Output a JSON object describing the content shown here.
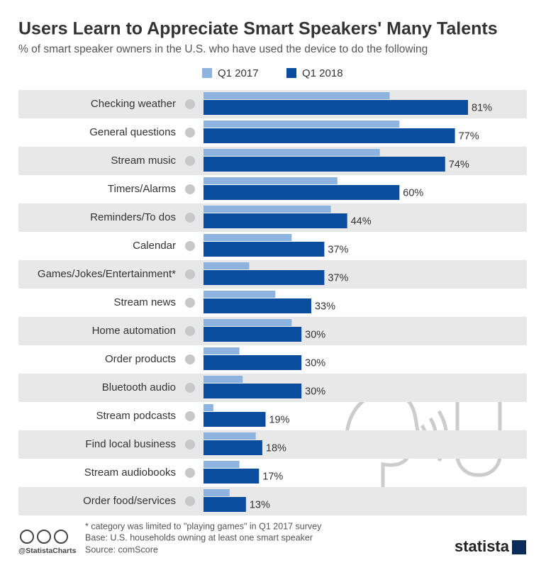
{
  "chart_data": {
    "type": "hbar",
    "title": "Users Learn to Appreciate Smart Speakers' Many Talents",
    "subtitle": "% of smart speaker owners in the U.S. who have used the device to do the following",
    "categories": [
      "Checking weather",
      "General questions",
      "Stream music",
      "Timers/Alarms",
      "Reminders/To dos",
      "Calendar",
      "Games/Jokes/Entertainment*",
      "Stream news",
      "Home automation",
      "Order products",
      "Bluetooth audio",
      "Stream podcasts",
      "Find local business",
      "Stream audiobooks",
      "Order food/services"
    ],
    "series": [
      {
        "name": "Q1 2017",
        "color": "#8db4df",
        "values": [
          57,
          60,
          54,
          41,
          39,
          27,
          14,
          22,
          27,
          11,
          12,
          3,
          16,
          11,
          8
        ]
      },
      {
        "name": "Q1 2018",
        "color": "#0a4d9f",
        "values": [
          81,
          77,
          74,
          60,
          44,
          37,
          37,
          33,
          30,
          30,
          30,
          19,
          18,
          17,
          13
        ],
        "value_labels": [
          "81%",
          "77%",
          "74%",
          "60%",
          "44%",
          "37%",
          "37%",
          "33%",
          "30%",
          "30%",
          "30%",
          "19%",
          "18%",
          "17%",
          "13%"
        ]
      }
    ],
    "legend": "top",
    "footnote": "* category was limited to \"playing games\" in Q1 2017 survey",
    "base": "Base: U.S. households owning at least one smart speaker",
    "source": "Source: comScore",
    "credit": "@StatistaCharts",
    "brand": "statista"
  }
}
